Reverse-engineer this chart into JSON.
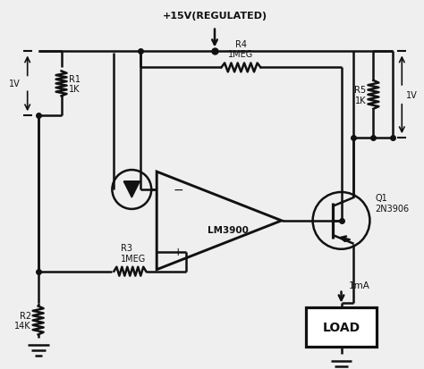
{
  "background_color": "#efefef",
  "line_color": "#111111",
  "lw": 1.8,
  "fig_width": 4.74,
  "fig_height": 4.14,
  "labels": {
    "title": "+15V(REGULATED)",
    "R1": "R1\n1K",
    "R2": "R2\n14K",
    "R3": "R3\n1MEG",
    "R4": "R4\n1MEG",
    "R5": "R5\n1K",
    "Q1": "Q1\n2N3906",
    "opamp": "LM3900",
    "load": "LOAD",
    "1V_left": "1V",
    "1V_right": "1V",
    "1mA": "1mA"
  }
}
